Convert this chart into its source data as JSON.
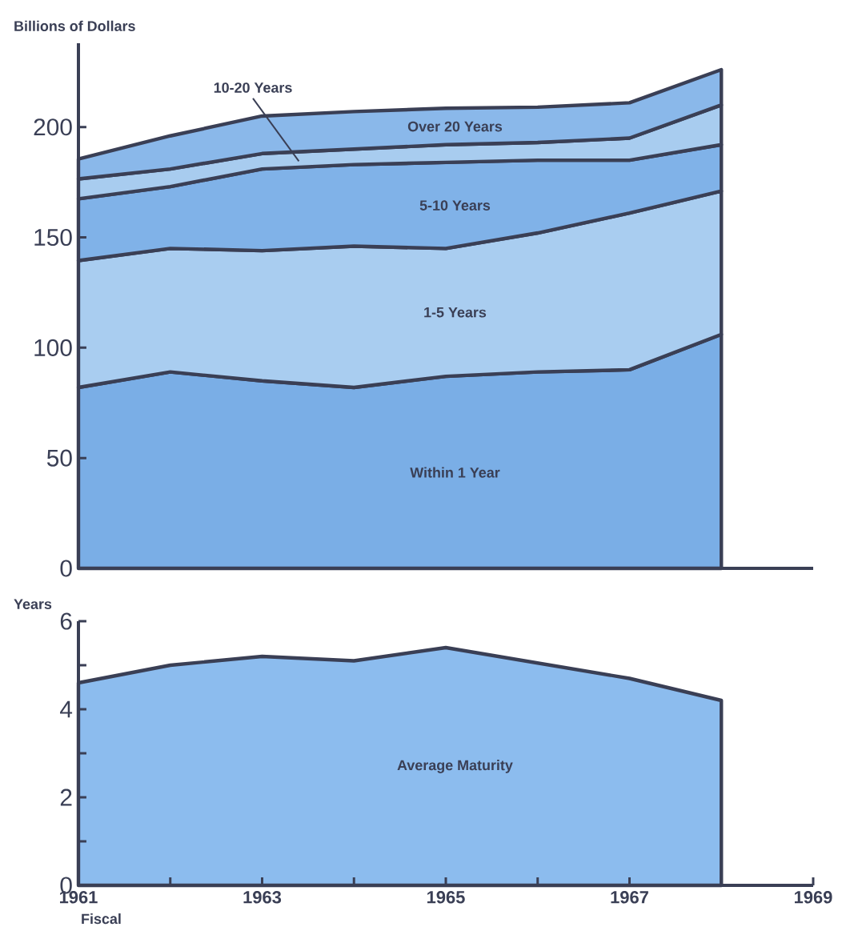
{
  "chart_data": [
    {
      "type": "area",
      "stacked": true,
      "ylabel": "Billions of Dollars",
      "x": [
        1961,
        1962,
        1963,
        1964,
        1965,
        1966,
        1967,
        1968
      ],
      "xlim": [
        1961,
        1969
      ],
      "ylim": [
        0,
        238
      ],
      "yticks": [
        0,
        50,
        100,
        150,
        200
      ],
      "tick_labels": "y",
      "series": [
        {
          "name": "Within 1 Year",
          "color": "#7aaee6",
          "values": [
            82,
            89,
            85,
            82,
            87,
            89,
            90,
            106
          ]
        },
        {
          "name": "1-5 Years",
          "color": "#a9cdf0",
          "values": [
            57.5,
            56,
            59,
            64,
            58,
            63,
            71,
            65
          ]
        },
        {
          "name": "5-10 Years",
          "color": "#80b2e8",
          "values": [
            28,
            28,
            37,
            37,
            39,
            33,
            24,
            21
          ]
        },
        {
          "name": "10-20 Years",
          "color": "#a8ccef",
          "values": [
            9,
            8,
            7,
            7,
            8,
            8,
            10,
            18
          ]
        },
        {
          "name": "Over 20 Years",
          "color": "#8ab8ea",
          "values": [
            9,
            15,
            17,
            17,
            16.5,
            16,
            16,
            16
          ]
        }
      ]
    },
    {
      "type": "area",
      "ylabel": "Years",
      "xlabel": "Fiscal",
      "x": [
        1961,
        1962,
        1963,
        1964,
        1965,
        1966,
        1967,
        1968
      ],
      "xlim": [
        1961,
        1969
      ],
      "ylim": [
        0,
        6
      ],
      "yticks": [
        0,
        {
          "value": 1,
          "label": null
        },
        2,
        {
          "value": 3,
          "label": null
        },
        4,
        {
          "value": 5,
          "label": null
        },
        6
      ],
      "xticks": [
        1961,
        {
          "value": 1962,
          "label": null
        },
        1963,
        {
          "value": 1964,
          "label": null
        },
        1965,
        {
          "value": 1966,
          "label": null
        },
        1967,
        {
          "value": 1968,
          "label": null
        },
        1969
      ],
      "series": [
        {
          "name": "Average Maturity",
          "color": "#8cbcee",
          "values": [
            4.6,
            5.0,
            5.2,
            5.1,
            5.4,
            5.05,
            4.7,
            4.2
          ]
        }
      ]
    }
  ]
}
